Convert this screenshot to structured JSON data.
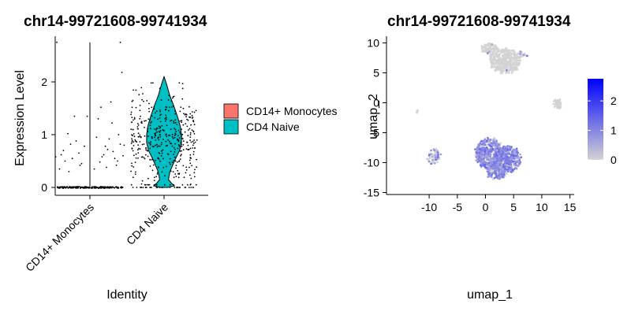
{
  "chart_data": [
    {
      "type": "violin",
      "title": "chr14-99721608-99741934",
      "xlabel": "Identity",
      "ylabel": "Expression Level",
      "categories": [
        "CD14+ Monocytes",
        "CD4 Naive"
      ],
      "ylim": [
        -0.1,
        2.8
      ],
      "yticks": [
        0,
        1,
        2
      ],
      "series": [
        {
          "name": "CD14+ Monocytes",
          "color": "#F8766D",
          "density_profile": [
            [
              0.0,
              0.0
            ],
            [
              0.3,
              0.0
            ],
            [
              2.75,
              0.0
            ]
          ],
          "max": 2.75,
          "nonzero_points": [
            [
              -0.62,
              0.58
            ],
            [
              -0.48,
              0.7
            ],
            [
              -0.32,
              0.55
            ],
            [
              -0.25,
              0.88
            ],
            [
              -0.4,
              1.02
            ],
            [
              -0.15,
              0.45
            ],
            [
              -0.55,
              0.35
            ],
            [
              -0.2,
              0.65
            ],
            [
              -0.1,
              0.78
            ],
            [
              -0.45,
              0.5
            ],
            [
              -0.35,
              0.82
            ],
            [
              -0.28,
              1.35
            ],
            [
              -0.05,
              1.35
            ],
            [
              -0.6,
              2.75
            ],
            [
              -0.18,
              0.42
            ],
            [
              -0.52,
              0.62
            ],
            [
              -0.38,
              0.3
            ],
            [
              0.12,
              0.95
            ],
            [
              0.25,
              0.62
            ],
            [
              0.18,
              0.48
            ],
            [
              0.32,
              0.72
            ],
            [
              0.4,
              1.22
            ],
            [
              0.45,
              0.55
            ],
            [
              0.52,
              1.0
            ],
            [
              0.3,
              0.38
            ],
            [
              0.2,
              1.52
            ],
            [
              0.15,
              1.3
            ],
            [
              0.38,
              1.62
            ],
            [
              0.55,
              0.82
            ],
            [
              0.6,
              0.6
            ],
            [
              0.28,
              0.78
            ],
            [
              0.48,
              0.42
            ],
            [
              0.35,
              0.92
            ],
            [
              0.58,
              2.18
            ],
            [
              0.42,
              0.68
            ],
            [
              0.62,
              0.8
            ],
            [
              0.22,
              0.58
            ],
            [
              0.5,
              0.5
            ],
            [
              0.08,
              0.35
            ],
            [
              0.55,
              2.75
            ]
          ],
          "zero_points": 220
        },
        {
          "name": "CD4 Naive",
          "color": "#00BFC4",
          "density_profile": [
            [
              0.0,
              0.1
            ],
            [
              0.03,
              0.28
            ],
            [
              0.08,
              0.2
            ],
            [
              0.15,
              0.12
            ],
            [
              0.3,
              0.16
            ],
            [
              0.5,
              0.28
            ],
            [
              0.7,
              0.42
            ],
            [
              0.85,
              0.47
            ],
            [
              1.0,
              0.47
            ],
            [
              1.15,
              0.44
            ],
            [
              1.35,
              0.36
            ],
            [
              1.55,
              0.26
            ],
            [
              1.75,
              0.15
            ],
            [
              1.95,
              0.07
            ],
            [
              2.1,
              0.0
            ]
          ],
          "max": 2.1,
          "jitter_points": 420,
          "zero_points": 30
        }
      ],
      "legend": "right"
    },
    {
      "type": "scatter",
      "title": "chr14-99721608-99741934",
      "xlabel": "umap_1",
      "ylabel": "umap_2",
      "xlim": [
        -13.5,
        15.5
      ],
      "ylim": [
        -15,
        11
      ],
      "xticks": [
        -10,
        -5,
        0,
        5,
        10,
        15
      ],
      "yticks": [
        -15,
        -10,
        -5,
        0,
        5,
        10
      ],
      "colorbar": {
        "min": 0,
        "max": 2.75,
        "ticks": [
          0,
          1,
          2
        ],
        "low_color": "#D3D3D3",
        "high_color": "#0000FF"
      },
      "clusters": [
        {
          "cx": 3.5,
          "cy": 7.0,
          "rx": 2.6,
          "ry": 2.0,
          "n": 420,
          "expressing": 0.01
        },
        {
          "cx": 0.8,
          "cy": 9.0,
          "rx": 1.4,
          "ry": 1.0,
          "n": 90,
          "expressing": 0.02
        },
        {
          "cx": 6.5,
          "cy": 8.0,
          "rx": 0.8,
          "ry": 0.6,
          "n": 30,
          "expressing": 0.05
        },
        {
          "cx": 12.8,
          "cy": -0.2,
          "rx": 0.7,
          "ry": 0.9,
          "n": 60,
          "expressing": 0.0
        },
        {
          "cx": -12.3,
          "cy": -1.5,
          "rx": 0.25,
          "ry": 0.25,
          "n": 4,
          "expressing": 0.0
        },
        {
          "cx": -9.2,
          "cy": -9.0,
          "rx": 1.1,
          "ry": 1.2,
          "n": 70,
          "expressing": 0.3
        },
        {
          "cx": 0.8,
          "cy": -8.5,
          "rx": 2.6,
          "ry": 2.6,
          "n": 520,
          "expressing": 0.75
        },
        {
          "cx": 3.8,
          "cy": -9.5,
          "rx": 2.4,
          "ry": 2.2,
          "n": 380,
          "expressing": 0.75
        },
        {
          "cx": 2.0,
          "cy": -11.5,
          "rx": 1.8,
          "ry": 1.3,
          "n": 160,
          "expressing": 0.7
        }
      ]
    }
  ]
}
